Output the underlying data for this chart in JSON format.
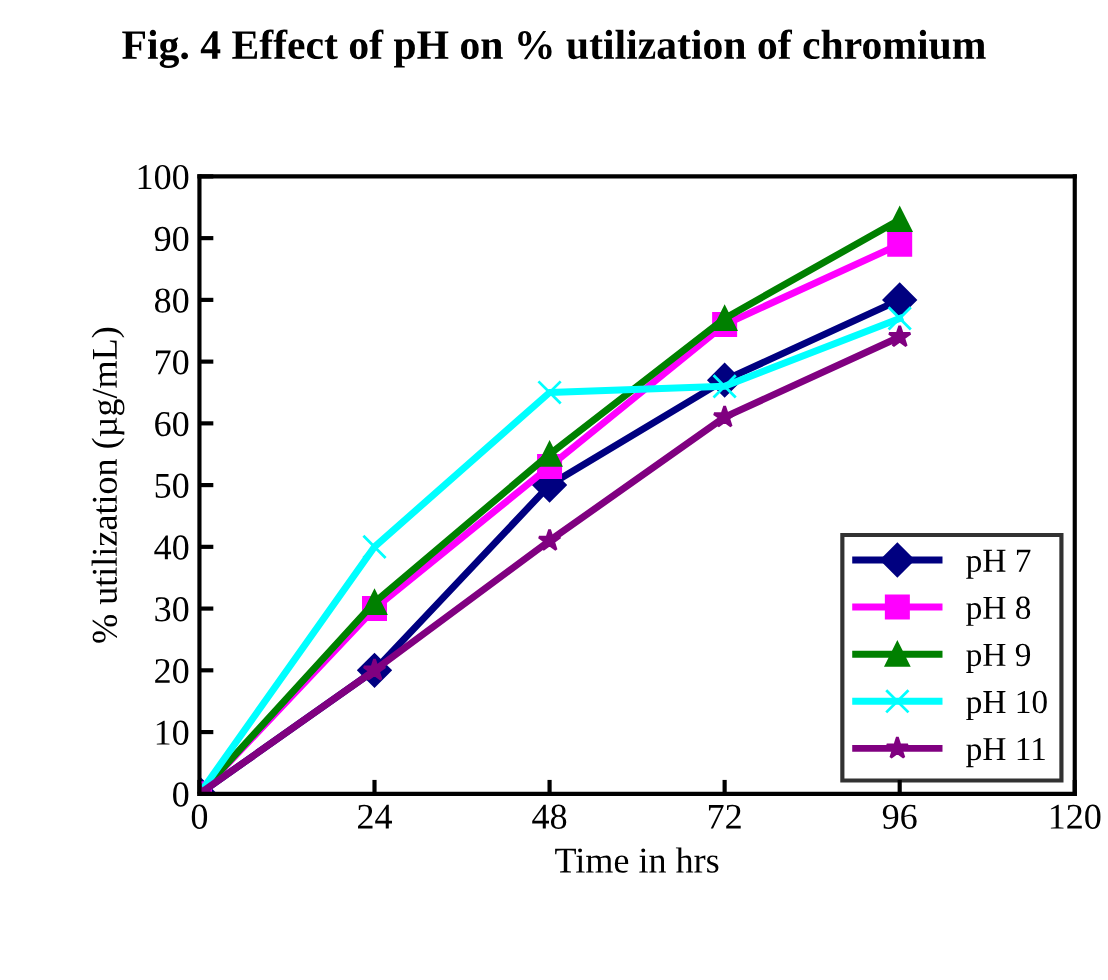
{
  "chart_data": {
    "type": "line",
    "title": "Fig. 4 Effect of pH on % utilization of chromium",
    "xlabel": "Time in hrs",
    "ylabel": "% utilization (µg/mL)",
    "x": [
      0,
      24,
      48,
      72,
      96
    ],
    "series": [
      {
        "name": "pH 7",
        "color": "#000080",
        "marker": "diamond",
        "values": [
          0,
          20,
          50,
          67,
          80
        ]
      },
      {
        "name": "pH 8",
        "color": "#ff00ff",
        "marker": "square",
        "values": [
          0,
          30,
          53,
          76,
          89
        ]
      },
      {
        "name": "pH 9",
        "color": "#008000",
        "marker": "triangle",
        "values": [
          0,
          31,
          55,
          77,
          93
        ]
      },
      {
        "name": "pH 10",
        "color": "#00ffff",
        "marker": "cross",
        "values": [
          0,
          40,
          65,
          66,
          77
        ]
      },
      {
        "name": "pH 11",
        "color": "#800080",
        "marker": "star",
        "values": [
          0,
          20,
          41,
          61,
          74
        ]
      }
    ],
    "xlim": [
      0,
      120
    ],
    "xticks": [
      0,
      24,
      48,
      72,
      96,
      120
    ],
    "ylim": [
      0,
      100
    ],
    "yticks": [
      0,
      10,
      20,
      30,
      40,
      50,
      60,
      70,
      80,
      90,
      100
    ],
    "grid": false,
    "legend": "right",
    "line_style": "solid"
  }
}
